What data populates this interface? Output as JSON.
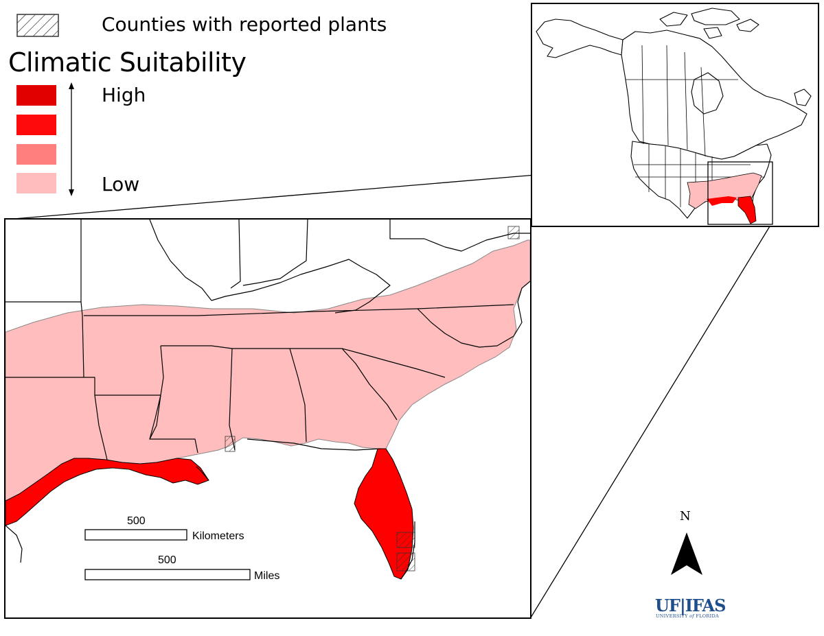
{
  "legend": {
    "counties_label": "Counties with reported plants",
    "title": "Climatic Suitability",
    "high_label": "High",
    "low_label": "Low",
    "classes": [
      {
        "level": "highest",
        "color": "#e00000"
      },
      {
        "level": "high",
        "color": "#ff0a0a"
      },
      {
        "level": "medium",
        "color": "#ff7f7f"
      },
      {
        "level": "low",
        "color": "#ffbdbd"
      }
    ]
  },
  "scale_bar": {
    "km_value": "500",
    "km_unit": "Kilometers",
    "mi_value": "500",
    "mi_unit": "Miles"
  },
  "north_arrow": {
    "label": "N"
  },
  "logo": {
    "main": "UF|IFAS",
    "sub_prefix": "UNIVERSITY ",
    "sub_of": "of",
    "sub_suffix": " FLORIDA"
  },
  "colors": {
    "low_suitability": "#ffbdbd",
    "high_suitability": "#ff0000",
    "border": "#000000",
    "logo_blue": "#1f4e8c"
  }
}
